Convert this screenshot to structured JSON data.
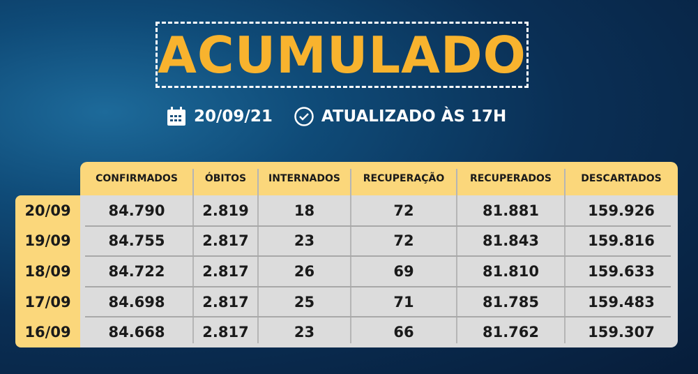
{
  "title": "ACUMULADO",
  "date": "20/09/21",
  "updated": "ATUALIZADO ÀS 17H",
  "icons": {
    "date": "calendar-icon",
    "time": "clock-icon"
  },
  "colors": {
    "accent": "#f8b32e",
    "header_bg": "#fbd77b",
    "body_bg": "#dcdcdc"
  },
  "table": {
    "columns": [
      "CONFIRMADOS",
      "ÓBITOS",
      "INTERNADOS",
      "RECUPERAÇÃO",
      "RECUPERADOS",
      "DESCARTADOS"
    ],
    "rows": [
      {
        "date": "20/09",
        "values": [
          "84.790",
          "2.819",
          "18",
          "72",
          "81.881",
          "159.926"
        ]
      },
      {
        "date": "19/09",
        "values": [
          "84.755",
          "2.817",
          "23",
          "72",
          "81.843",
          "159.816"
        ]
      },
      {
        "date": "18/09",
        "values": [
          "84.722",
          "2.817",
          "26",
          "69",
          "81.810",
          "159.633"
        ]
      },
      {
        "date": "17/09",
        "values": [
          "84.698",
          "2.817",
          "25",
          "71",
          "81.785",
          "159.483"
        ]
      },
      {
        "date": "16/09",
        "values": [
          "84.668",
          "2.817",
          "23",
          "66",
          "81.762",
          "159.307"
        ]
      }
    ]
  }
}
